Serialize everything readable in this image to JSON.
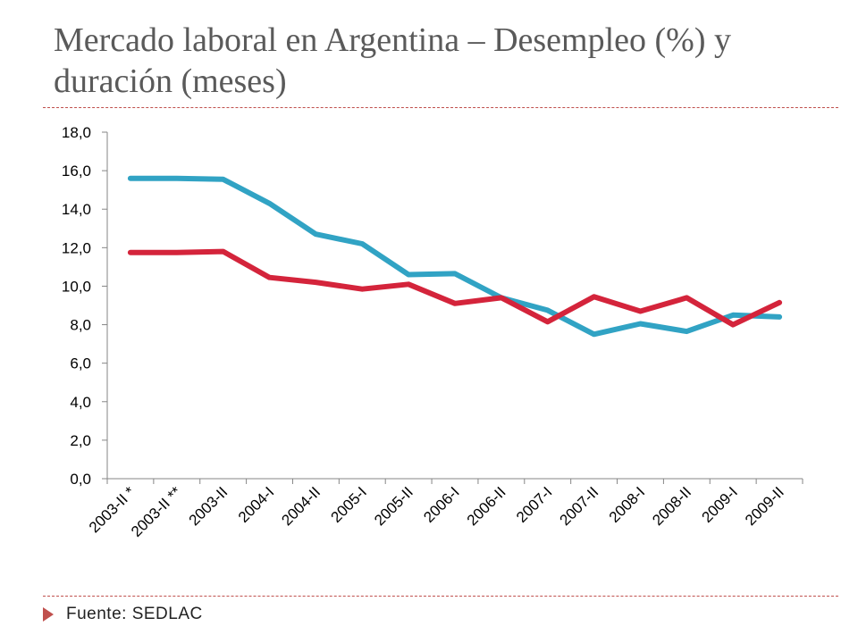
{
  "slide": {
    "title": "Mercado laboral en Argentina – Desempleo (%) y duración (meses)",
    "source": "Fuente:  SEDLAC"
  },
  "chart_data": {
    "type": "line",
    "title": "",
    "xlabel": "",
    "ylabel": "",
    "ylim": [
      0,
      18
    ],
    "y_ticks": [
      "0,0",
      "2,0",
      "4,0",
      "6,0",
      "8,0",
      "10,0",
      "12,0",
      "14,0",
      "16,0",
      "18,0"
    ],
    "categories": [
      "2003-II *",
      "2003-II **",
      "2003-II",
      "2004-I",
      "2004-II",
      "2005-I",
      "2005-II",
      "2006-I",
      "2006-II",
      "2007-I",
      "2007-II",
      "2008-I",
      "2008-II",
      "2009-I",
      "2009-II"
    ],
    "grid": false,
    "legend": "none",
    "series": [
      {
        "color": "#31a3c4",
        "values": [
          15.6,
          15.6,
          15.55,
          14.3,
          12.7,
          12.2,
          10.6,
          10.65,
          9.4,
          8.75,
          7.5,
          8.05,
          7.65,
          8.5,
          8.4
        ]
      },
      {
        "color": "#d4243b",
        "values": [
          11.75,
          11.75,
          11.8,
          10.45,
          10.2,
          9.85,
          10.1,
          9.1,
          9.4,
          8.15,
          9.45,
          8.7,
          9.4,
          8.0,
          9.15
        ]
      }
    ]
  },
  "colors": {
    "accent": "#c0504d",
    "title": "#5a5a5a"
  }
}
